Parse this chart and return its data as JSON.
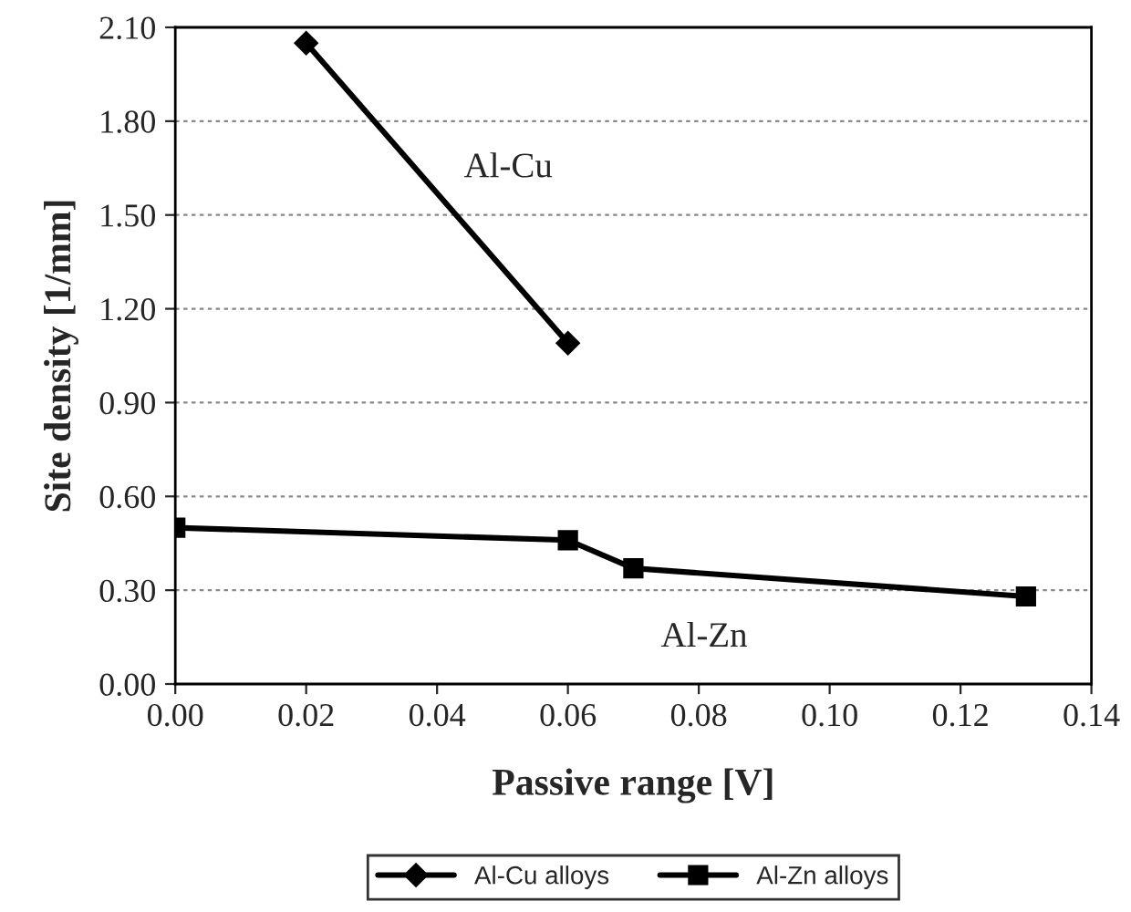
{
  "chart_data": {
    "type": "line",
    "xlabel": "Passive range [V]",
    "ylabel": "Site density [1/mm]",
    "xlim": [
      0,
      0.14
    ],
    "xticks": [
      {
        "value": 0,
        "label": "0.00"
      },
      {
        "value": 0.02,
        "label": "0.02"
      },
      {
        "value": 0.04,
        "label": "0.04"
      },
      {
        "value": 0.06,
        "label": "0.06"
      },
      {
        "value": 0.08,
        "label": "0.08"
      },
      {
        "value": 0.1,
        "label": "0.10"
      },
      {
        "value": 0.12,
        "label": "0.12"
      },
      {
        "value": 0.14,
        "label": "0.14"
      }
    ],
    "ylim": [
      0,
      2.1
    ],
    "yticks": [
      {
        "value": 0,
        "label": "0.00"
      },
      {
        "value": 0.3,
        "label": "0.30"
      },
      {
        "value": 0.6,
        "label": "0.60"
      },
      {
        "value": 0.9,
        "label": "0.90"
      },
      {
        "value": 1.2,
        "label": "1.20"
      },
      {
        "value": 1.5,
        "label": "1.50"
      },
      {
        "value": 1.8,
        "label": "1.80"
      },
      {
        "value": 2.1,
        "label": "2.10"
      }
    ],
    "grid": "y",
    "legend": "bottom",
    "line_style": "solid",
    "series": [
      {
        "name": "Al-Cu alloys",
        "color": "#000000",
        "marker": "diamond",
        "x": [
          0.02,
          0.06
        ],
        "values": [
          2.05,
          1.09
        ]
      },
      {
        "name": "Al-Zn alloys",
        "color": "#000000",
        "marker": "square",
        "x": [
          0,
          0.06,
          0.07,
          0.13
        ],
        "values": [
          0.5,
          0.46,
          0.37,
          0.28
        ]
      }
    ],
    "annotations": [
      "Al-Cu",
      "Al-Zn"
    ]
  }
}
